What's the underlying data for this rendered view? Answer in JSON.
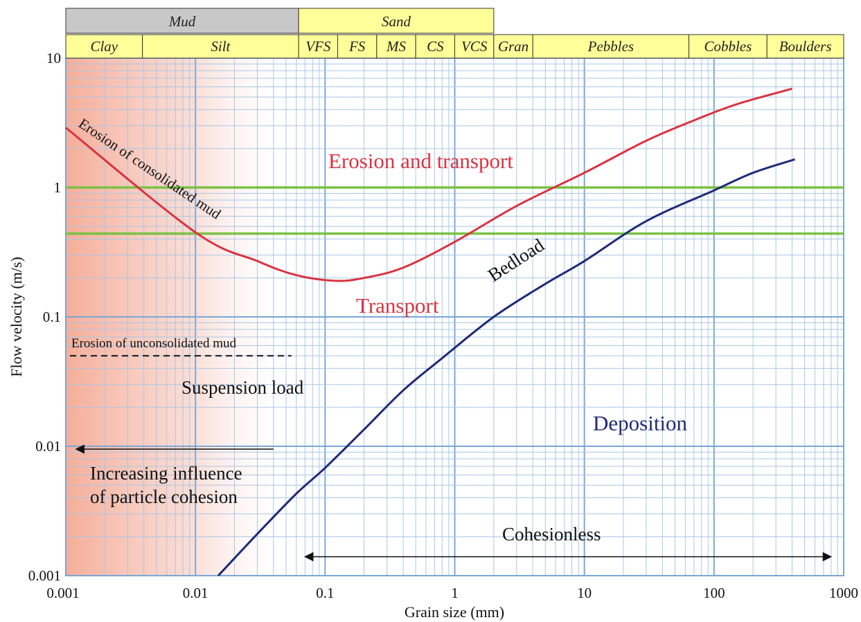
{
  "chart_data": {
    "type": "line",
    "xlabel": "Grain size (mm)",
    "ylabel": "Flow velocity (m/s)",
    "x_scale": "log",
    "y_scale": "log",
    "xlim": [
      0.001,
      1000
    ],
    "ylim": [
      0.001,
      10
    ],
    "x_ticks": [
      "0.001",
      "0.01",
      "0.1",
      "1",
      "10",
      "100",
      "1000"
    ],
    "y_ticks": [
      "0.001",
      "0.01",
      "0.1",
      "1",
      "10"
    ],
    "grid": true,
    "size_classes_top": [
      {
        "label": "Mud",
        "from": 0.001,
        "to": 0.0625,
        "color": "#c8c8c8"
      },
      {
        "label": "Sand",
        "from": 0.0625,
        "to": 2,
        "color": "#ffff99"
      }
    ],
    "size_classes": [
      {
        "label": "Clay",
        "from": 0.001,
        "to": 0.0039
      },
      {
        "label": "Silt",
        "from": 0.0039,
        "to": 0.0625
      },
      {
        "label": "VFS",
        "from": 0.0625,
        "to": 0.125
      },
      {
        "label": "FS",
        "from": 0.125,
        "to": 0.25
      },
      {
        "label": "MS",
        "from": 0.25,
        "to": 0.5
      },
      {
        "label": "CS",
        "from": 0.5,
        "to": 1
      },
      {
        "label": "VCS",
        "from": 1,
        "to": 2
      },
      {
        "label": "Gran",
        "from": 2,
        "to": 4
      },
      {
        "label": "Pebbles",
        "from": 4,
        "to": 64
      },
      {
        "label": "Cobbles",
        "from": 64,
        "to": 256
      },
      {
        "label": "Boulders",
        "from": 256,
        "to": 1000
      }
    ],
    "class_band_color": "#ffff99",
    "series": [
      {
        "color": "#d9333f",
        "x": [
          0.001,
          0.01,
          0.03,
          0.06,
          0.12,
          0.2,
          0.4,
          1,
          3,
          10,
          30,
          70,
          130,
          200,
          400
        ],
        "y": [
          2.9,
          0.45,
          0.27,
          0.21,
          0.19,
          0.2,
          0.24,
          0.38,
          0.72,
          1.3,
          2.3,
          3.3,
          4.2,
          4.8,
          5.8
        ]
      },
      {
        "color": "#1e2a78",
        "x": [
          0.015,
          0.03,
          0.06,
          0.1,
          0.2,
          0.4,
          0.8,
          2,
          5,
          10,
          30,
          100,
          200,
          420
        ],
        "y": [
          0.001,
          0.0021,
          0.0043,
          0.0068,
          0.0135,
          0.027,
          0.048,
          0.1,
          0.18,
          0.27,
          0.55,
          0.95,
          1.3,
          1.65
        ]
      }
    ],
    "thresholds": [
      {
        "y": 1.0,
        "color": "#7ac143"
      },
      {
        "y": 0.44,
        "color": "#7ac143"
      }
    ],
    "dashed_line": {
      "x_from": 0.001,
      "x_to": 0.055,
      "y": 0.05
    },
    "cohesion_arrow": {
      "x_from": 0.04,
      "x_to": 0.0012,
      "y": 0.0095
    },
    "cohesionless_arrow": {
      "x_from": 0.07,
      "x_to": 800,
      "y": 0.0014
    },
    "annotations": {
      "erosion_consolidated_mud": "Erosion of consolidated mud",
      "erosion_and_transport": "Erosion and transport",
      "transport": "Transport",
      "bedload": "Bedload",
      "erosion_unconsolidated_mud": "Erosion of unconsolidated mud",
      "suspension_load": "Suspension load",
      "deposition": "Deposition",
      "cohesion_line1": "Increasing influence",
      "cohesion_line2": "of particle cohesion",
      "cohesionless": "Cohesionless"
    },
    "colors": {
      "grid": "#a9c6e6",
      "grid_major": "#7aa7d6",
      "cohesion_shade": "#f4a58f",
      "red_text": "#d9333f",
      "blue_text": "#1e2a78"
    }
  }
}
